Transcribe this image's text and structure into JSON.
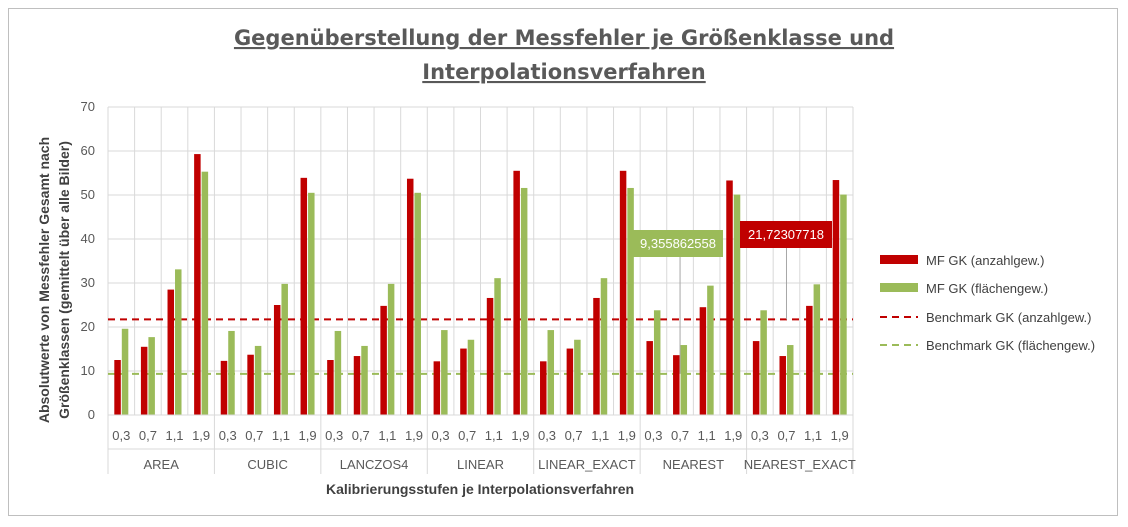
{
  "chart_data": {
    "type": "bar",
    "title_lines": [
      "Gegenüberstellung der Messfehler je Größenklasse und",
      "Interpolationsverfahren"
    ],
    "xlabel": "Kalibrierungsstufen je Interpolationsverfahren",
    "ylabel_lines": [
      "Absolutwerte von Messfehler Gesamt nach",
      "Größenklassen (gemittelt über alle Bilder)"
    ],
    "ylim": [
      0,
      70
    ],
    "yticks": [
      0,
      10,
      20,
      30,
      40,
      50,
      60,
      70
    ],
    "grid": true,
    "legend_position": "right",
    "groups": [
      "AREA",
      "CUBIC",
      "LANCZOS4",
      "LINEAR",
      "LINEAR_EXACT",
      "NEAREST",
      "NEAREST_EXACT"
    ],
    "categories": [
      "0,3",
      "0,7",
      "1,1",
      "1,9"
    ],
    "series": [
      {
        "name": "MF GK (anzahlgew.)",
        "color": "#c00000",
        "values": [
          [
            12.5,
            15.5,
            28.5,
            59.3
          ],
          [
            12.3,
            13.7,
            25.0,
            53.9
          ],
          [
            12.5,
            13.4,
            24.8,
            53.7
          ],
          [
            12.2,
            15.1,
            26.6,
            55.5
          ],
          [
            12.2,
            15.1,
            26.6,
            55.5
          ],
          [
            16.8,
            13.6,
            24.5,
            53.3
          ],
          [
            16.8,
            13.4,
            24.8,
            53.4
          ]
        ]
      },
      {
        "name": "MF GK (flächengew.)",
        "color": "#9bbb59",
        "values": [
          [
            19.6,
            17.7,
            33.1,
            55.3
          ],
          [
            19.1,
            15.7,
            29.8,
            50.5
          ],
          [
            19.1,
            15.7,
            29.8,
            50.5
          ],
          [
            19.3,
            17.1,
            31.1,
            51.6
          ],
          [
            19.3,
            17.1,
            31.1,
            51.6
          ],
          [
            23.8,
            15.9,
            29.4,
            50.1
          ],
          [
            23.8,
            15.9,
            29.7,
            50.1
          ]
        ]
      }
    ],
    "benchmarks": [
      {
        "name": "Benchmark GK (anzahlgew.)",
        "value": 21.72307718,
        "label": "21,72307718",
        "color": "#c00000"
      },
      {
        "name": "Benchmark GK (flächengew.)",
        "value": 9.355862558,
        "label": "9,355862558",
        "color": "#9bbb59"
      }
    ]
  }
}
